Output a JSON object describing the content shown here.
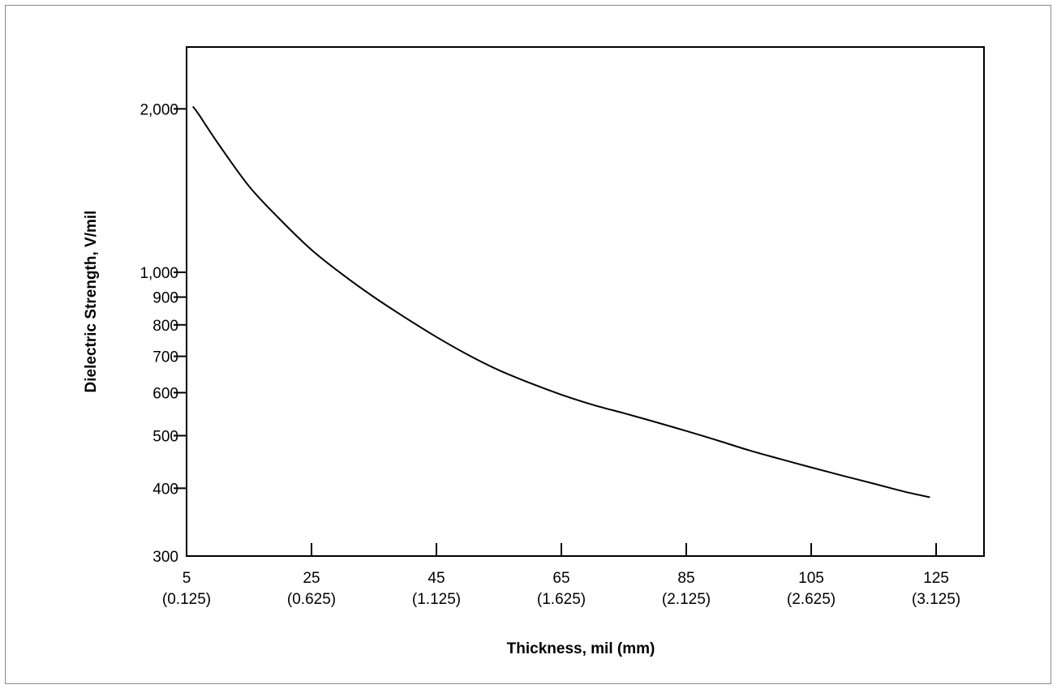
{
  "chart_data": {
    "type": "line",
    "title": "",
    "xlabel": "Thickness, mil (mm)",
    "ylabel": "Dielectric Strength, V/mil",
    "x_scale": "linear",
    "y_scale": "log",
    "xlim": [
      5,
      130
    ],
    "ylim": [
      300,
      2600
    ],
    "grid": false,
    "legend": "none",
    "x_ticks": [
      {
        "value": 5,
        "label": "5",
        "sublabel": "(0.125)"
      },
      {
        "value": 25,
        "label": "25",
        "sublabel": "(0.625)"
      },
      {
        "value": 45,
        "label": "45",
        "sublabel": "(1.125)"
      },
      {
        "value": 65,
        "label": "65",
        "sublabel": "(1.625)"
      },
      {
        "value": 85,
        "label": "85",
        "sublabel": "(2.125)"
      },
      {
        "value": 105,
        "label": "105",
        "sublabel": "(2.625)"
      },
      {
        "value": 125,
        "label": "125",
        "sublabel": "(3.125)"
      }
    ],
    "y_ticks": [
      {
        "value": 300,
        "label": "300"
      },
      {
        "value": 400,
        "label": "400"
      },
      {
        "value": 500,
        "label": "500"
      },
      {
        "value": 600,
        "label": "600"
      },
      {
        "value": 700,
        "label": "700"
      },
      {
        "value": 800,
        "label": "800"
      },
      {
        "value": 900,
        "label": "900"
      },
      {
        "value": 1000,
        "label": "1,000"
      },
      {
        "value": 2000,
        "label": "2,000"
      }
    ],
    "series": [
      {
        "color": "#000000",
        "x": [
          6,
          7,
          10,
          15,
          20,
          25,
          30,
          35,
          40,
          45,
          50,
          55,
          60,
          65,
          70,
          75,
          80,
          85,
          90,
          95,
          100,
          105,
          110,
          115,
          120,
          124
        ],
        "y": [
          2020,
          1950,
          1730,
          1440,
          1250,
          1100,
          990,
          900,
          825,
          760,
          705,
          660,
          625,
          595,
          570,
          550,
          530,
          510,
          490,
          470,
          453,
          437,
          422,
          408,
          394,
          385
        ]
      }
    ]
  }
}
